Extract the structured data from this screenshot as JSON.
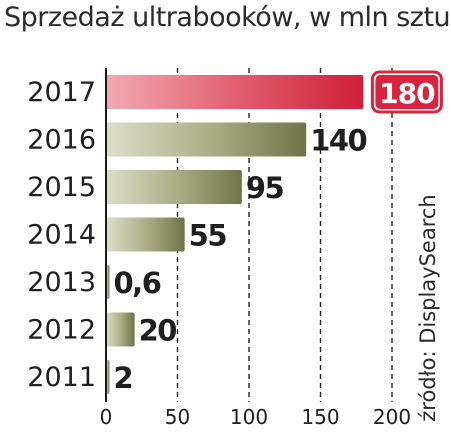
{
  "title": "Sprzedaż ultrabooków, w mln sztuk",
  "source": "źródło: DisplaySearch",
  "chart_data": {
    "type": "bar",
    "orientation": "horizontal",
    "title": "Sprzedaż ultrabooków, w mln sztuk",
    "categories": [
      "2017",
      "2016",
      "2015",
      "2014",
      "2013",
      "2012",
      "2011"
    ],
    "values": [
      180,
      140,
      95,
      55,
      0.6,
      20,
      2
    ],
    "value_labels": [
      "180",
      "140",
      "95",
      "55",
      "0,6",
      "20",
      "2"
    ],
    "x_ticks": [
      0,
      50,
      100,
      150,
      200
    ],
    "xlim": [
      0,
      200
    ],
    "grid": "vertical dashed",
    "highlight": "2017",
    "colors": {
      "bar": "#8f9468",
      "highlight_bar": "#d9354a",
      "highlight_label_bg": "#d6253e",
      "text": "#1f1f1f"
    }
  }
}
